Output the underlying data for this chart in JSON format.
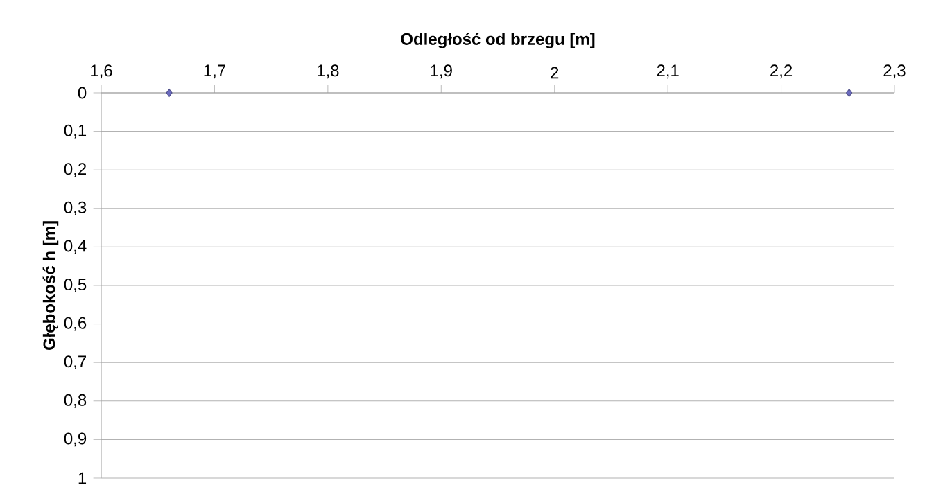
{
  "chart_data": {
    "type": "scatter",
    "xlabel": "Odległość od brzegu [m]",
    "ylabel": "Głębokość h [m]",
    "x": [
      1.66,
      2.26
    ],
    "values": [
      0,
      0
    ],
    "color": "#6b6bbf",
    "marker": "diamond",
    "xlim": [
      1.6,
      2.3
    ],
    "ylim": [
      1,
      0
    ],
    "xticks": [
      {
        "value": 1.6,
        "label": "1,6"
      },
      {
        "value": 1.7,
        "label": "1,7"
      },
      {
        "value": 1.8,
        "label": "1,8"
      },
      {
        "value": 1.9,
        "label": "1,9"
      },
      2,
      {
        "value": 2.1,
        "label": "2,1"
      },
      {
        "value": 2.2,
        "label": "2,2"
      },
      {
        "value": 2.3,
        "label": "2,3"
      }
    ],
    "yticks": [
      0,
      {
        "value": 0.1,
        "label": "0,1"
      },
      {
        "value": 0.2,
        "label": "0,2"
      },
      {
        "value": 0.3,
        "label": "0,3"
      },
      {
        "value": 0.4,
        "label": "0,4"
      },
      {
        "value": 0.5,
        "label": "0,5"
      },
      {
        "value": 0.6,
        "label": "0,6"
      },
      {
        "value": 0.7,
        "label": "0,7"
      },
      {
        "value": 0.8,
        "label": "0,8"
      },
      {
        "value": 0.9,
        "label": "0,9"
      },
      1
    ],
    "grid": "y"
  }
}
